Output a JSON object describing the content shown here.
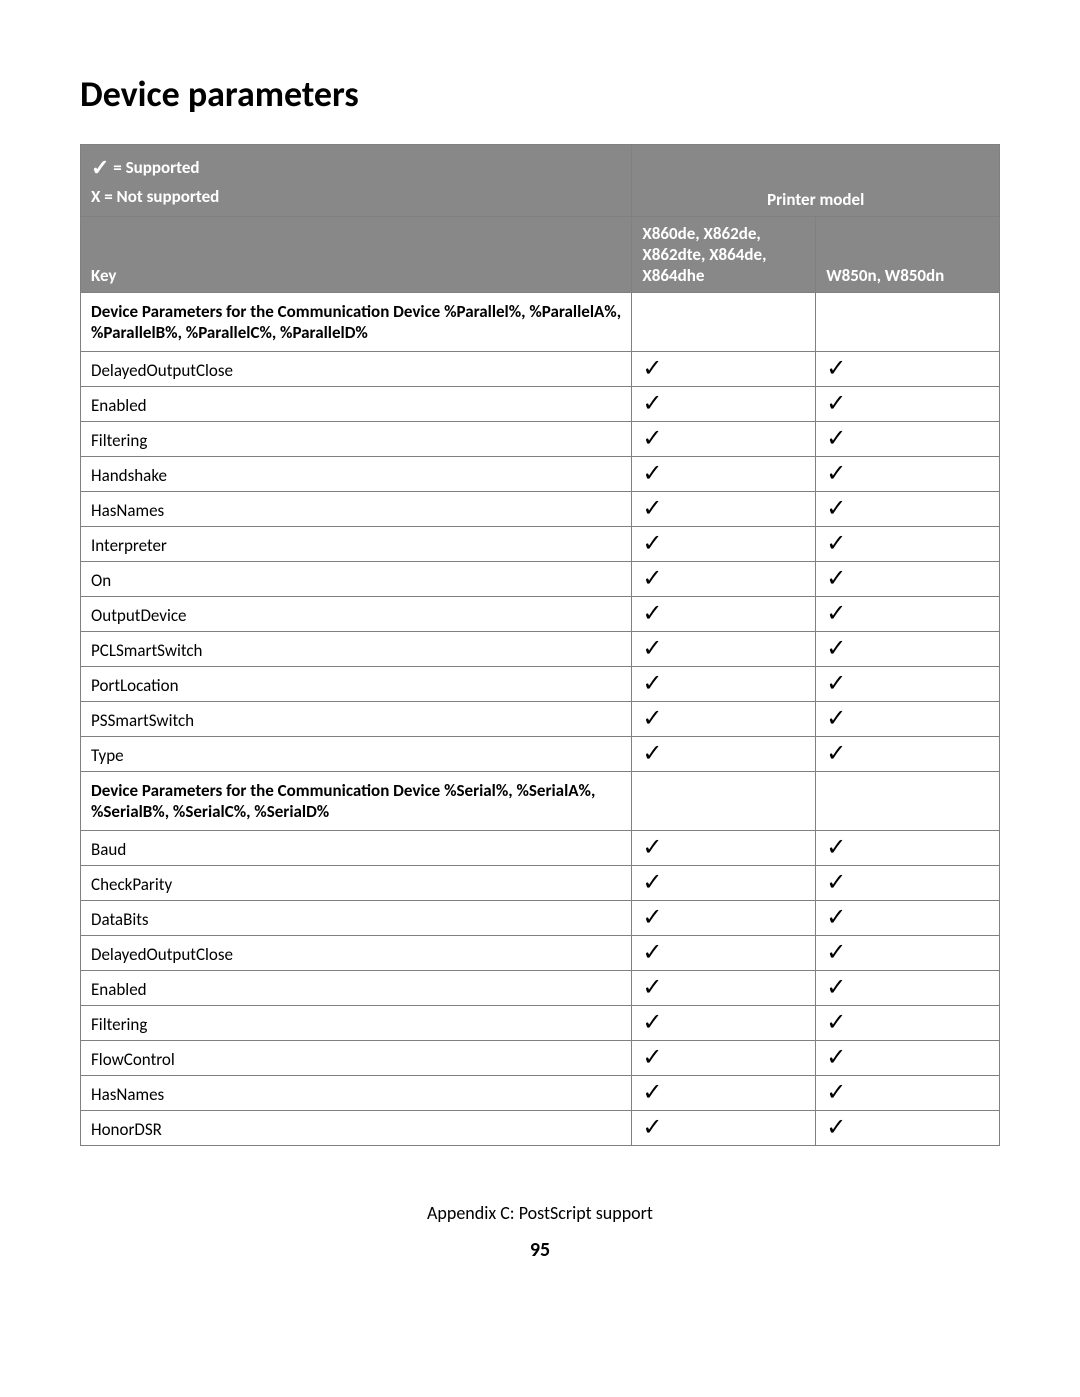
{
  "page_title": "Device parameters",
  "legend": {
    "supported_symbol": "✓",
    "supported_text": "= Supported",
    "not_supported_text": "X = Not supported"
  },
  "header": {
    "printer_model_label": "Printer model",
    "key_label": "Key",
    "col_a": "X860de, X862de, X862dte, X864de, X864dhe",
    "col_b": "W850n, W850dn"
  },
  "check_symbol": "✓",
  "sections": [
    {
      "title": "Device Parameters for the Communication Device %Parallel%, %ParallelA%, %ParallelB%, %ParallelC%, %ParallelD%",
      "rows": [
        {
          "key": "DelayedOutputClose",
          "a": true,
          "b": true
        },
        {
          "key": "Enabled",
          "a": true,
          "b": true
        },
        {
          "key": "Filtering",
          "a": true,
          "b": true
        },
        {
          "key": "Handshake",
          "a": true,
          "b": true
        },
        {
          "key": "HasNames",
          "a": true,
          "b": true
        },
        {
          "key": "Interpreter",
          "a": true,
          "b": true
        },
        {
          "key": "On",
          "a": true,
          "b": true
        },
        {
          "key": "OutputDevice",
          "a": true,
          "b": true
        },
        {
          "key": "PCLSmartSwitch",
          "a": true,
          "b": true
        },
        {
          "key": "PortLocation",
          "a": true,
          "b": true
        },
        {
          "key": "PSSmartSwitch",
          "a": true,
          "b": true
        },
        {
          "key": "Type",
          "a": true,
          "b": true
        }
      ]
    },
    {
      "title": "Device Parameters for the Communication Device %Serial%, %SerialA%, %SerialB%, %SerialC%, %SerialD%",
      "rows": [
        {
          "key": "Baud",
          "a": true,
          "b": true
        },
        {
          "key": "CheckParity",
          "a": true,
          "b": true
        },
        {
          "key": "DataBits",
          "a": true,
          "b": true
        },
        {
          "key": "DelayedOutputClose",
          "a": true,
          "b": true
        },
        {
          "key": "Enabled",
          "a": true,
          "b": true
        },
        {
          "key": "Filtering",
          "a": true,
          "b": true
        },
        {
          "key": "FlowControl",
          "a": true,
          "b": true
        },
        {
          "key": "HasNames",
          "a": true,
          "b": true
        },
        {
          "key": "HonorDSR",
          "a": true,
          "b": true
        }
      ]
    }
  ],
  "footer": {
    "appendix": "Appendix C: PostScript support",
    "page_number": "95"
  },
  "colors": {
    "header_bg": "#888888",
    "border": "#808080",
    "text": "#000000",
    "header_text": "#ffffff"
  }
}
